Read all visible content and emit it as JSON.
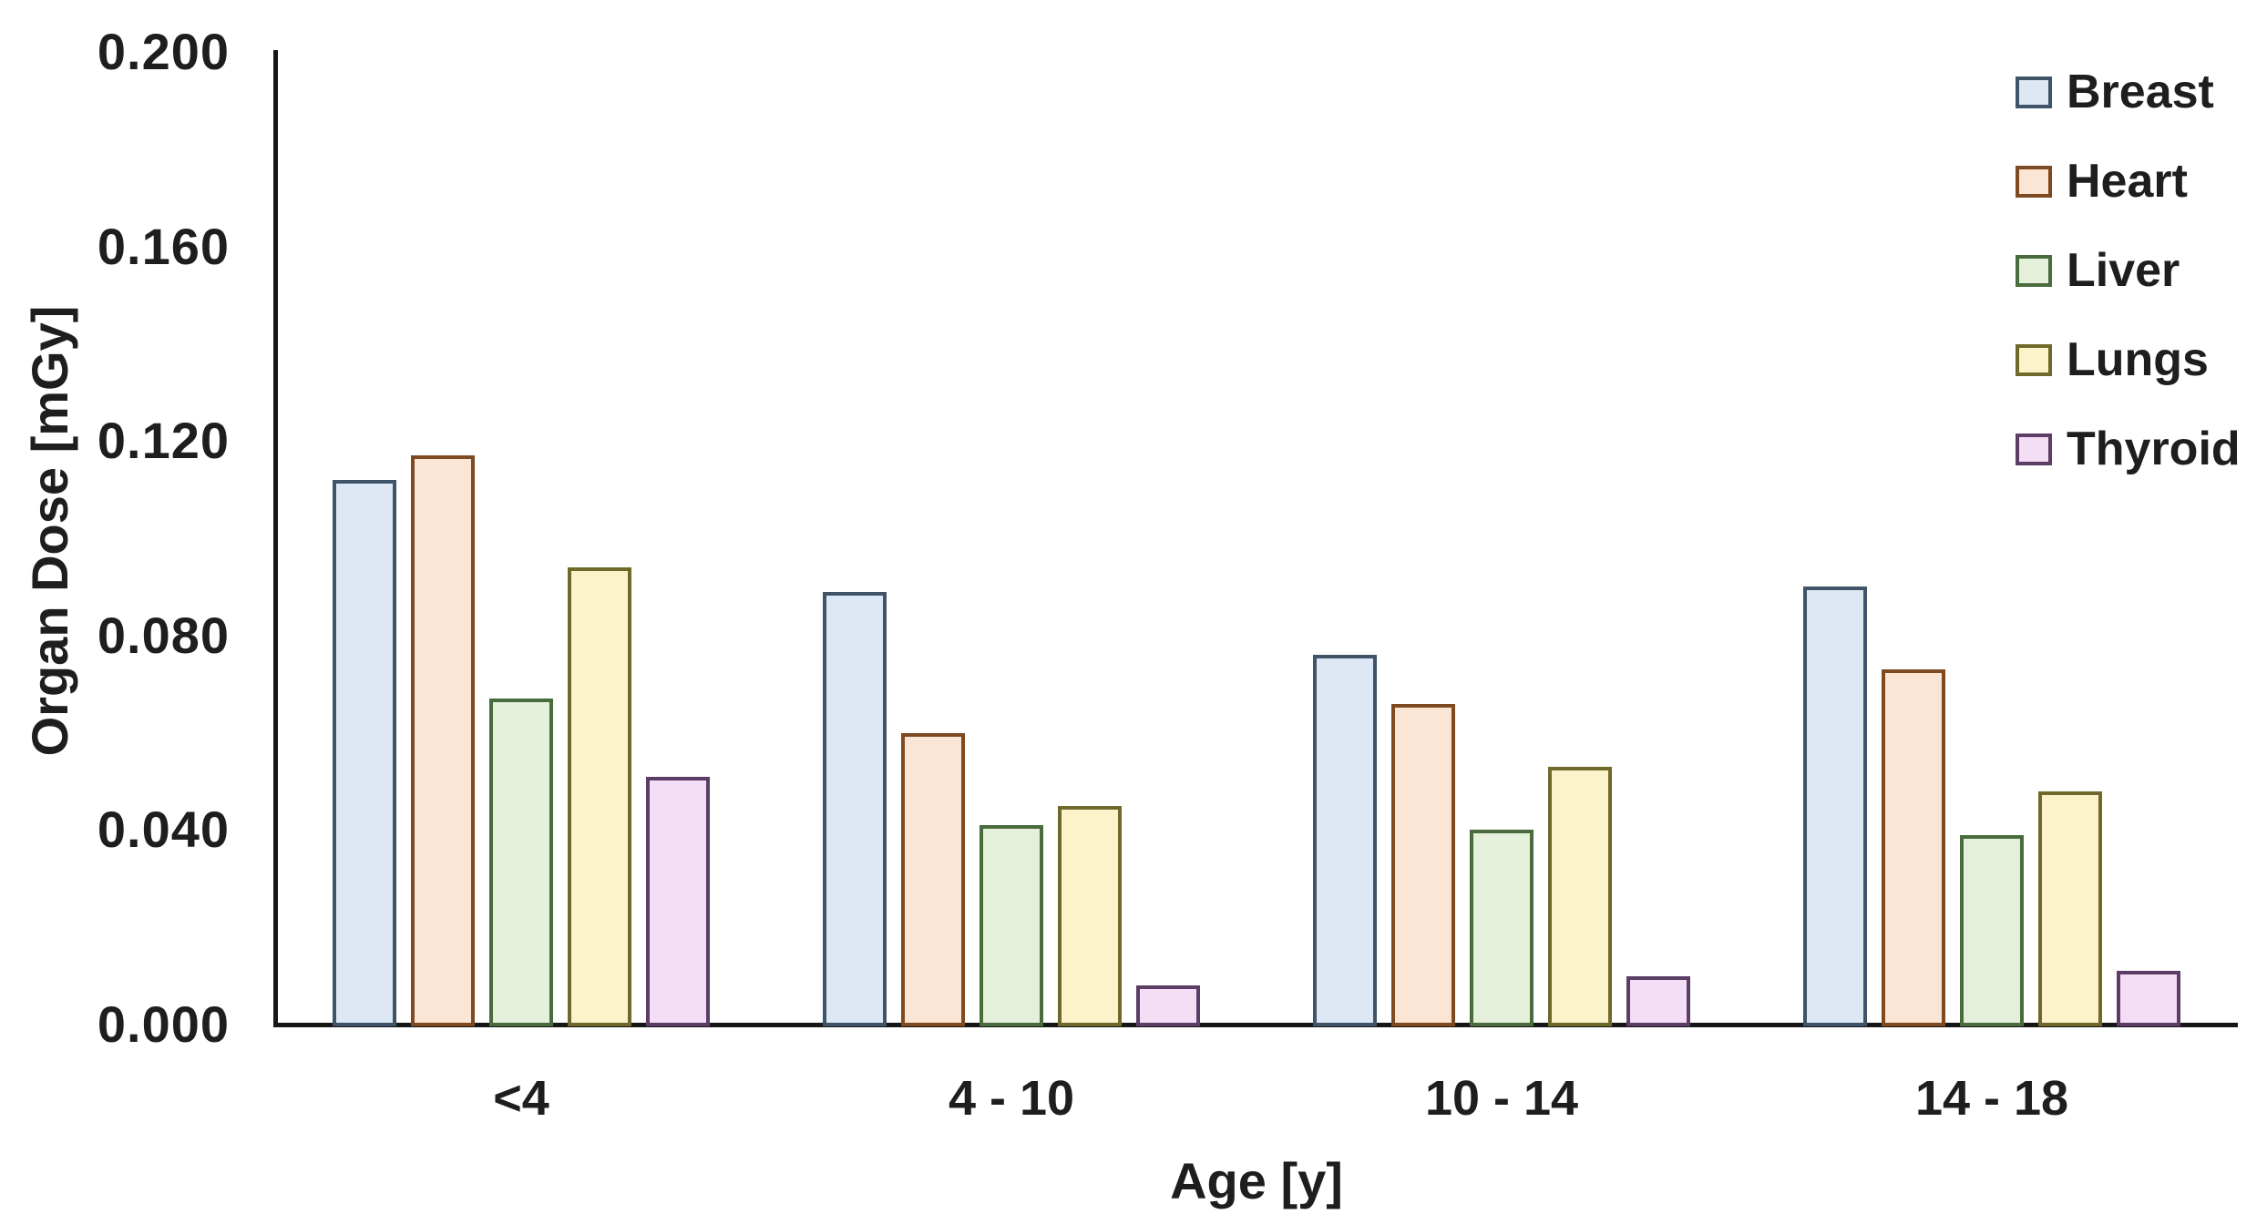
{
  "chart_data": {
    "type": "bar",
    "xlabel": "Age [y]",
    "ylabel": "Organ Dose [mGy]",
    "categories": [
      "<4",
      "4 - 10",
      "10 - 14",
      "14 - 18"
    ],
    "series": [
      {
        "name": "Breast",
        "fill": "#dde8f4",
        "border": "#3f5469",
        "values": [
          0.112,
          0.089,
          0.076,
          0.09
        ]
      },
      {
        "name": "Heart",
        "fill": "#fbe5d4",
        "border": "#7e4a21",
        "values": [
          0.117,
          0.06,
          0.066,
          0.073
        ]
      },
      {
        "name": "Liver",
        "fill": "#e4f0da",
        "border": "#4a6b3d",
        "values": [
          0.067,
          0.041,
          0.04,
          0.039
        ]
      },
      {
        "name": "Lungs",
        "fill": "#fcf3cb",
        "border": "#6f6a2c",
        "values": [
          0.094,
          0.045,
          0.053,
          0.048
        ]
      },
      {
        "name": "Thyroid",
        "fill": "#f4def6",
        "border": "#5c3d66",
        "values": [
          0.051,
          0.008,
          0.01,
          0.011
        ]
      }
    ],
    "ylim": [
      0,
      0.2
    ],
    "yticks": [
      {
        "label": "0.000",
        "value": 0.0
      },
      {
        "label": "0.040",
        "value": 0.04
      },
      {
        "label": "0.080",
        "value": 0.08
      },
      {
        "label": "0.120",
        "value": 0.12
      },
      {
        "label": "0.160",
        "value": 0.16
      },
      {
        "label": "0.200",
        "value": 0.2
      }
    ],
    "grid": false,
    "legend_position": "top-right",
    "axis_color": "#161616",
    "text_color": "#1e1e1e"
  }
}
